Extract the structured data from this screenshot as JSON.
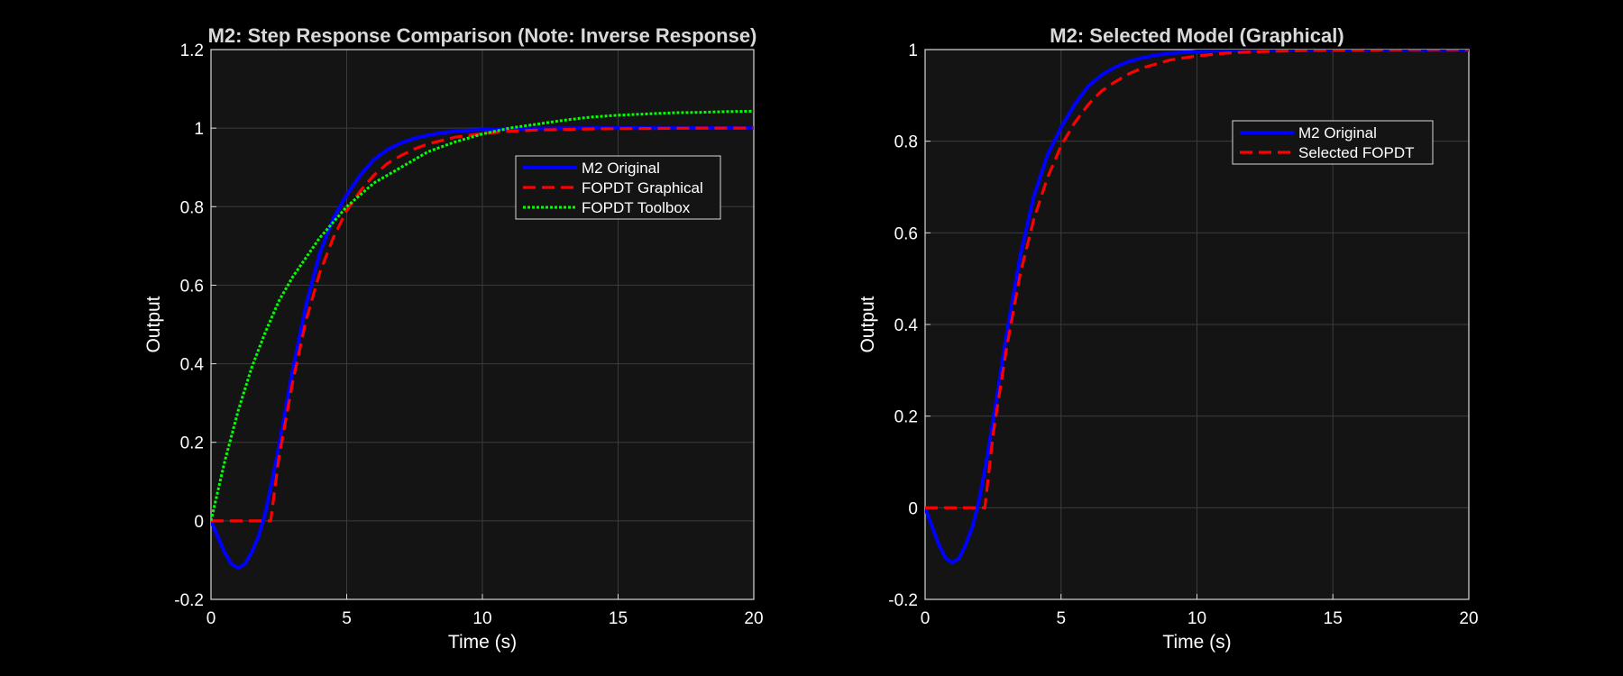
{
  "theme": {
    "figure_bg": "#000000",
    "axes_bg": "#141414",
    "grid_color": "#3c3c3c",
    "axis_color": "#d9d9d9",
    "text_color": "#ffffff",
    "title_color": "#d9d9d9"
  },
  "chart_data": [
    {
      "type": "line",
      "title": "M2: Step Response Comparison (Note: Inverse Response)",
      "xlabel": "Time (s)",
      "ylabel": "Output",
      "xlim": [
        0,
        20
      ],
      "ylim": [
        -0.2,
        1.2
      ],
      "xticks": [
        "0",
        "5",
        "10",
        "15",
        "20"
      ],
      "yticks": [
        "-0.2",
        "0",
        "0.2",
        "0.4",
        "0.6",
        "0.8",
        "1",
        "1.2"
      ],
      "grid": true,
      "legend_position": "top-right",
      "series": [
        {
          "name": "M2 Original",
          "color": "#0000ff",
          "style": "solid",
          "x": [
            0,
            0.25,
            0.5,
            0.75,
            1,
            1.25,
            1.5,
            1.75,
            2,
            2.25,
            2.5,
            3,
            3.5,
            4,
            4.5,
            5,
            5.5,
            6,
            6.5,
            7,
            7.5,
            8,
            8.5,
            9,
            10,
            11,
            12,
            14,
            16,
            18,
            20
          ],
          "y": [
            0,
            -0.04,
            -0.08,
            -0.11,
            -0.12,
            -0.11,
            -0.08,
            -0.04,
            0.02,
            0.1,
            0.19,
            0.38,
            0.55,
            0.68,
            0.77,
            0.83,
            0.88,
            0.92,
            0.945,
            0.962,
            0.974,
            0.982,
            0.988,
            0.992,
            0.996,
            0.998,
            0.999,
            1,
            1,
            1,
            1
          ]
        },
        {
          "name": "FOPDT Graphical",
          "color": "#ff0000",
          "style": "dashed",
          "x": [
            0,
            2.2,
            2.5,
            3,
            3.5,
            4,
            4.5,
            5,
            5.5,
            6,
            6.5,
            7,
            7.5,
            8,
            9,
            10,
            11,
            12,
            14,
            16,
            18,
            20
          ],
          "y": [
            0,
            0,
            0.16,
            0.35,
            0.51,
            0.63,
            0.72,
            0.79,
            0.84,
            0.88,
            0.91,
            0.93,
            0.947,
            0.96,
            0.977,
            0.986,
            0.992,
            0.995,
            0.998,
            0.999,
            1,
            1
          ]
        },
        {
          "name": "FOPDT Toolbox",
          "color": "#00ff00",
          "style": "dotted",
          "x": [
            0,
            0.5,
            1,
            1.5,
            2,
            2.5,
            3,
            4,
            5,
            6,
            7,
            8,
            9,
            10,
            11,
            12,
            13,
            14,
            15,
            16,
            17,
            18,
            19,
            20
          ],
          "y": [
            0,
            0.15,
            0.28,
            0.39,
            0.48,
            0.56,
            0.62,
            0.72,
            0.8,
            0.86,
            0.9,
            0.94,
            0.965,
            0.985,
            1.0,
            1.01,
            1.02,
            1.028,
            1.033,
            1.036,
            1.039,
            1.04,
            1.042,
            1.043
          ]
        }
      ]
    },
    {
      "type": "line",
      "title": "M2: Selected Model (Graphical)",
      "xlabel": "Time (s)",
      "ylabel": "Output",
      "xlim": [
        0,
        20
      ],
      "ylim": [
        -0.2,
        1
      ],
      "xticks": [
        "0",
        "5",
        "10",
        "15",
        "20"
      ],
      "yticks": [
        "-0.2",
        "0",
        "0.2",
        "0.4",
        "0.6",
        "0.8",
        "1"
      ],
      "grid": true,
      "legend_position": "top-right",
      "series": [
        {
          "name": "M2 Original",
          "color": "#0000ff",
          "style": "solid",
          "x": [
            0,
            0.25,
            0.5,
            0.75,
            1,
            1.25,
            1.5,
            1.75,
            2,
            2.25,
            2.5,
            3,
            3.5,
            4,
            4.5,
            5,
            5.5,
            6,
            6.5,
            7,
            7.5,
            8,
            8.5,
            9,
            10,
            11,
            12,
            14,
            16,
            18,
            20
          ],
          "y": [
            0,
            -0.04,
            -0.08,
            -0.11,
            -0.12,
            -0.11,
            -0.08,
            -0.04,
            0.02,
            0.1,
            0.19,
            0.38,
            0.55,
            0.68,
            0.77,
            0.83,
            0.88,
            0.92,
            0.945,
            0.962,
            0.974,
            0.982,
            0.988,
            0.992,
            0.996,
            0.998,
            0.999,
            1,
            1,
            1,
            1
          ]
        },
        {
          "name": "Selected FOPDT",
          "color": "#ff0000",
          "style": "dashed",
          "x": [
            0,
            2.2,
            2.5,
            3,
            3.5,
            4,
            4.5,
            5,
            5.5,
            6,
            6.5,
            7,
            7.5,
            8,
            9,
            10,
            11,
            12,
            14,
            16,
            18,
            20
          ],
          "y": [
            0,
            0,
            0.16,
            0.35,
            0.51,
            0.63,
            0.72,
            0.79,
            0.84,
            0.88,
            0.91,
            0.93,
            0.947,
            0.96,
            0.977,
            0.986,
            0.992,
            0.995,
            0.998,
            0.999,
            1,
            1
          ]
        }
      ]
    }
  ]
}
